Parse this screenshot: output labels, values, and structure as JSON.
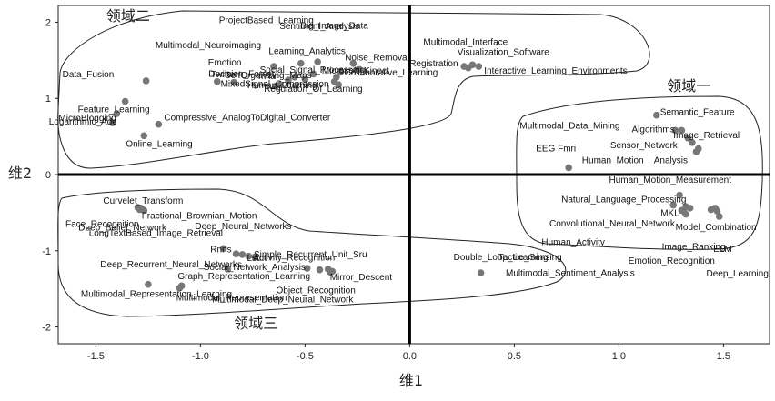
{
  "chart_data": {
    "type": "scatter",
    "title": "",
    "xlabel": "维1",
    "ylabel": "维2",
    "xlim": [
      -1.68,
      1.72
    ],
    "ylim": [
      -2.22,
      2.22
    ],
    "xticks": [
      -1.5,
      -1.0,
      -0.5,
      0.0,
      0.5,
      1.0,
      1.5
    ],
    "xtick_labels": [
      "-1.5",
      "-1.0",
      "-0.5",
      "0.0",
      "0.5",
      "1.0",
      "1.5"
    ],
    "yticks": [
      2,
      1,
      0,
      -1,
      -2
    ],
    "ytick_labels": [
      "2",
      "1",
      "0",
      "-1",
      "-2"
    ],
    "grid": false,
    "point_color": "#777777",
    "regions": [
      {
        "name": "领域一",
        "label_at": [
          1.23,
          1.1
        ]
      },
      {
        "name": "领域二",
        "label_at": [
          -1.45,
          2.02
        ]
      },
      {
        "name": "领域三",
        "label_at": [
          -0.84,
          -2.02
        ]
      }
    ],
    "points": [
      {
        "x": -1.26,
        "y": 1.23,
        "label": "Data_Fusion"
      },
      {
        "x": -1.2,
        "y": 0.66,
        "label": "Compressive_AnalogToDigital_Converter"
      },
      {
        "x": -1.27,
        "y": 0.51,
        "label": "Online_Learning"
      },
      {
        "x": -0.92,
        "y": 1.22,
        "label": "Emotion"
      },
      {
        "x": -0.84,
        "y": 1.21,
        "label": "Decision_Forest"
      },
      {
        "x": -0.65,
        "y": 1.42,
        "label": "Multimodal_Neuroimaging"
      },
      {
        "x": -0.64,
        "y": 1.16,
        "label": "Imfla"
      },
      {
        "x": -0.62,
        "y": 1.18,
        "label": "Twitter"
      },
      {
        "x": -0.58,
        "y": 1.24,
        "label": "SelfOrganizing_Maps"
      },
      {
        "x": -0.55,
        "y": 1.28,
        "label": "Human_Learning"
      },
      {
        "x": -0.52,
        "y": 1.46,
        "label": "ProjectBased_Learning"
      },
      {
        "x": -0.5,
        "y": 1.25,
        "label": "Learning_Analytics"
      },
      {
        "x": -0.46,
        "y": 1.32,
        "label": "MixedSignal_Compression"
      },
      {
        "x": -0.44,
        "y": 1.48,
        "label": "Sentiment_Analysis"
      },
      {
        "x": -0.35,
        "y": 1.28,
        "label": "Microsoft_Kinect"
      },
      {
        "x": -0.33,
        "y": 1.35,
        "label": "Collaborative_Learning"
      },
      {
        "x": -0.27,
        "y": 1.46,
        "label": "Big_Image_Data"
      },
      {
        "x": -0.24,
        "y": 1.38,
        "label": "Noise_Removal"
      },
      {
        "x": -0.36,
        "y": 1.22,
        "label": "Social_Signal_Processing"
      },
      {
        "x": -0.34,
        "y": 1.18,
        "label": "Regulation_Of_Learning"
      },
      {
        "x": 0.26,
        "y": 1.42,
        "label": "Registration"
      },
      {
        "x": 0.33,
        "y": 1.42,
        "label": "Interactive_Learning_Environments"
      },
      {
        "x": 0.3,
        "y": 1.44,
        "label": "Multimodal_Interface"
      },
      {
        "x": 0.28,
        "y": 1.4,
        "label": "Visualization_Software"
      },
      {
        "x": 1.18,
        "y": 0.78,
        "label": "Semantic_Feature"
      },
      {
        "x": 1.27,
        "y": 0.58,
        "label": "Algorithms"
      },
      {
        "x": 1.33,
        "y": 0.48,
        "label": "Image_Retrieval"
      },
      {
        "x": 1.35,
        "y": 0.42,
        "label": "Sensor_Network"
      },
      {
        "x": 1.38,
        "y": 0.34,
        "label": "Human_Motion__Analysis"
      },
      {
        "x": 1.37,
        "y": 0.3,
        "label": "Human_Motion_Measurement"
      },
      {
        "x": 1.3,
        "y": 0.58,
        "label": "Multimodal_Data_Mining"
      },
      {
        "x": 0.76,
        "y": 0.09,
        "label": "EEG Fmri"
      },
      {
        "x": 1.29,
        "y": -0.27,
        "label": "Natural_Language_Processing"
      },
      {
        "x": 1.26,
        "y": -0.4,
        "label": "MKL"
      },
      {
        "x": 1.32,
        "y": -0.42,
        "label": "Convolutional_Neural_Network"
      },
      {
        "x": 1.34,
        "y": -0.44,
        "label": "Model_Combination"
      },
      {
        "x": 1.3,
        "y": -0.47,
        "label": "Human_Activity"
      },
      {
        "x": 1.44,
        "y": -0.46,
        "label": "Image_Ranking"
      },
      {
        "x": 1.46,
        "y": -0.44,
        "label": "ELM"
      },
      {
        "x": 1.48,
        "y": -0.55,
        "label": "Emotion_Recognition"
      },
      {
        "x": 1.31,
        "y": -0.48,
        "label": "Tactile_Sensing"
      },
      {
        "x": 1.32,
        "y": -0.52,
        "label": "Multimodal_Sentiment_Analysis"
      },
      {
        "x": 1.47,
        "y": -0.48,
        "label": "Deep_Learning"
      },
      {
        "x": -1.3,
        "y": -0.43,
        "label": "Curvelet_Transform"
      },
      {
        "x": -1.29,
        "y": -0.46,
        "label": "Fractional_Brownian_Motion"
      },
      {
        "x": -1.28,
        "y": -0.45,
        "label": "Face_Recognition"
      },
      {
        "x": -1.27,
        "y": -0.47,
        "label": "Deep_Belief_Network"
      },
      {
        "x": -0.89,
        "y": -0.97,
        "label": "LongTextBased_Image_Retrieval"
      },
      {
        "x": -0.83,
        "y": -1.04,
        "label": "Lstm"
      },
      {
        "x": -0.8,
        "y": -1.05,
        "label": "Deep_Neural_Networks"
      },
      {
        "x": -0.77,
        "y": -1.07,
        "label": "Rnns"
      },
      {
        "x": -0.74,
        "y": -1.08,
        "label": "Activity_Recognition"
      },
      {
        "x": -0.49,
        "y": -1.23,
        "label": "Social_Network_Analysis"
      },
      {
        "x": -0.43,
        "y": -1.25,
        "label": "Object_Recognition"
      },
      {
        "x": -0.38,
        "y": -1.28,
        "label": "Simple_Recurrent_Unit_Sru"
      },
      {
        "x": -0.39,
        "y": -1.24,
        "label": "Mirror_Descent"
      },
      {
        "x": -0.37,
        "y": -1.27,
        "label": "Multimodal_Deep_Neural_Network"
      },
      {
        "x": 0.34,
        "y": -1.29,
        "label": "Double_Loop_Learning"
      },
      {
        "x": -1.25,
        "y": -1.44,
        "label": "Multimodal_Representation_Learning"
      },
      {
        "x": -1.1,
        "y": -1.49,
        "label": "Graph_Representation_Learning"
      },
      {
        "x": -1.09,
        "y": -1.46,
        "label": "Multimodal_Representation"
      },
      {
        "x": -0.87,
        "y": -1.24,
        "label": "Deep_Recurrent_Neural_Networks"
      },
      {
        "x": -1.36,
        "y": 0.96,
        "label": "Feature_Learning"
      },
      {
        "x": -1.4,
        "y": 0.8,
        "label": "MicroBlogging"
      },
      {
        "x": -1.42,
        "y": 0.68,
        "label": "Logarithmic_Adc"
      }
    ]
  }
}
